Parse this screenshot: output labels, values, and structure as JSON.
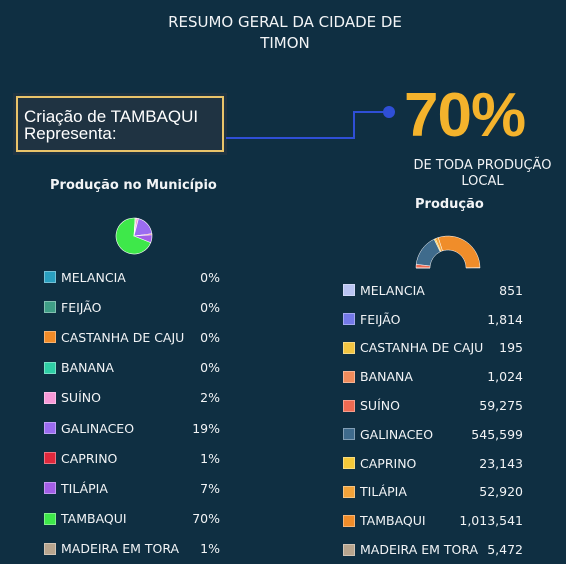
{
  "title_line1": "RESUMO GERAL DA CIDADE DE",
  "title_line2": "TIMON",
  "callout_line1": "Criação de TAMBAQUI",
  "callout_line2": "Representa:",
  "big_percent": "70%",
  "sub_line1": "DE TODA PRODUÇÃO",
  "sub_line2": "LOCAL",
  "chart_data": [
    {
      "type": "pie",
      "title": "Produção no Município",
      "categories": [
        "MELANCIA",
        "FEIJÃO",
        "CASTANHA DE CAJU",
        "BANANA",
        "SUÍNO",
        "GALINACEO",
        "CAPRINO",
        "TILÁPIA",
        "TAMBAQUI",
        "MADEIRA EM TORA"
      ],
      "values": [
        0,
        0,
        0,
        0,
        2,
        19,
        1,
        7,
        70,
        1
      ],
      "labels": [
        "0%",
        "0%",
        "0%",
        "0%",
        "2%",
        "19%",
        "1%",
        "7%",
        "70%",
        "1%"
      ],
      "colors": [
        "#2a9fbf",
        "#3f9e86",
        "#f28c28",
        "#2fcfa6",
        "#f79ad8",
        "#9b6cf0",
        "#e0283c",
        "#a25ee6",
        "#3ee84a",
        "#b8a58e"
      ],
      "legend": "bottom"
    },
    {
      "type": "pie",
      "title": "Produção",
      "categories": [
        "MELANCIA",
        "FEIJÃO",
        "CASTANHA DE CAJU",
        "BANANA",
        "SUÍNO",
        "GALINACEO",
        "CAPRINO",
        "TILÁPIA",
        "TAMBAQUI",
        "MADEIRA EM TORA"
      ],
      "values": [
        851,
        1814,
        195,
        1024,
        59275,
        545599,
        23143,
        52920,
        1013541,
        5472
      ],
      "labels": [
        "851",
        "1,814",
        "195",
        "1,024",
        "59,275",
        "545,599",
        "23,143",
        "52,920",
        "1,013,541",
        "5,472"
      ],
      "colors": [
        "#b9c4f2",
        "#7479e8",
        "#f2c542",
        "#f08c5c",
        "#ee6a52",
        "#3f6b8c",
        "#f5c93a",
        "#f2a33a",
        "#f08d2a",
        "#b8a58e"
      ],
      "legend": "bottom"
    }
  ]
}
